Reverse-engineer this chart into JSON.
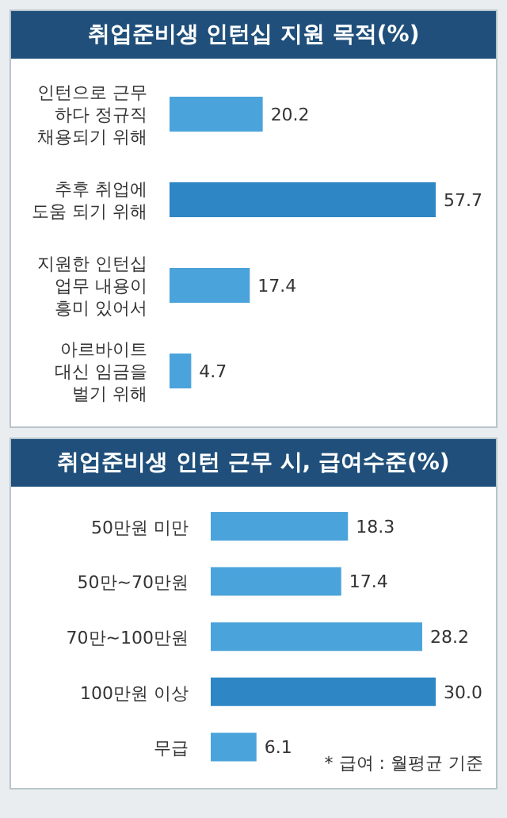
{
  "chart_data": [
    {
      "type": "bar",
      "orientation": "horizontal",
      "title": "취업준비생 인턴십 지원 목적(%)",
      "categories": [
        "인턴으로 근무\n하다 정규직\n채용되기 위해",
        "추후 취업에\n도움 되기 위해",
        "지원한 인턴십\n업무 내용이\n흥미 있어서",
        "아르바이트\n대신 임금을\n벌기 위해"
      ],
      "values": [
        20.2,
        57.7,
        17.4,
        4.7
      ],
      "colors": [
        "#4ba3db",
        "#2f86c4",
        "#4ba3db",
        "#4ba3db"
      ],
      "data_labels": true
    },
    {
      "type": "bar",
      "orientation": "horizontal",
      "title": "취업준비생 인턴 근무 시, 급여수준(%)",
      "categories": [
        "50만원 미만",
        "50만~70만원",
        "70만~100만원",
        "100만원 이상",
        "무급"
      ],
      "values": [
        18.3,
        17.4,
        28.2,
        30.0,
        6.1
      ],
      "value_labels": [
        "18.3",
        "17.4",
        "28.2",
        "30.0",
        "6.1"
      ],
      "colors": [
        "#4ba3db",
        "#4ba3db",
        "#4ba3db",
        "#2f86c4",
        "#4ba3db"
      ],
      "annotations": [
        "* 급여 : 월평균 기준"
      ]
    }
  ]
}
